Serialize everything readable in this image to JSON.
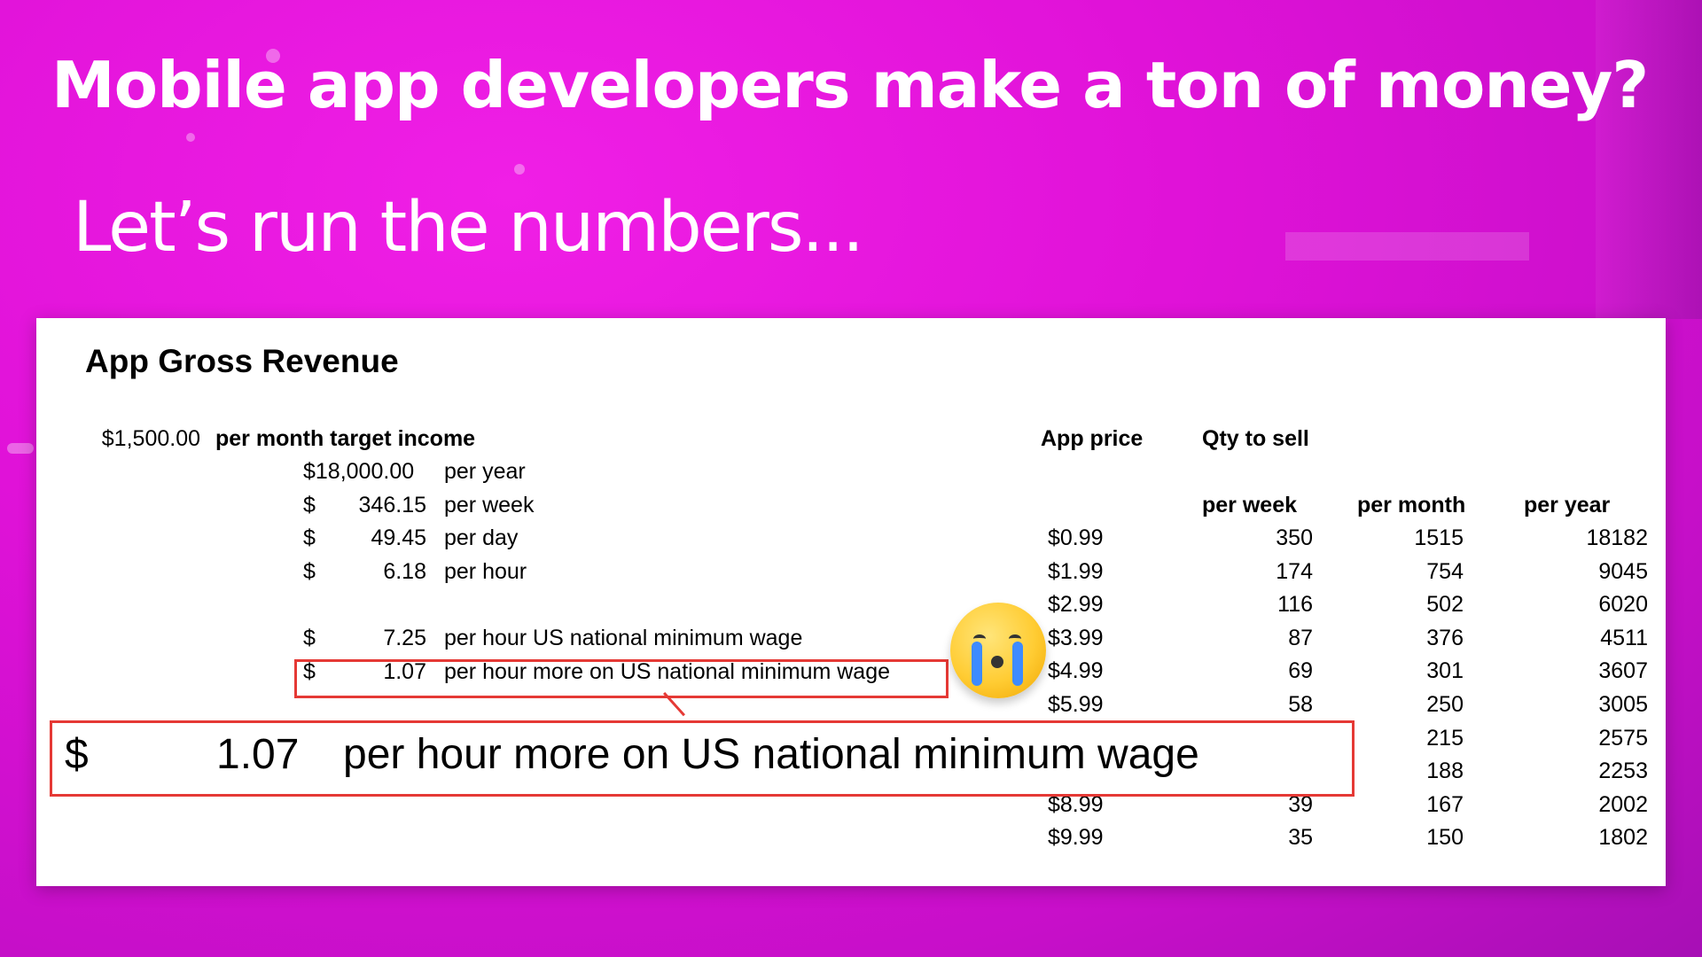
{
  "slide": {
    "title": "Mobile app developers make a ton of money?",
    "subtitle": "Let’s run the numbers..."
  },
  "sheet": {
    "title": "App Gross Revenue",
    "target": {
      "amount": "$1,500.00",
      "label": "per month target income"
    },
    "breakdown": [
      {
        "dollar": "$18,000.00",
        "amount": "",
        "label": "per year"
      },
      {
        "dollar": "$",
        "amount": "346.15",
        "label": "per week"
      },
      {
        "dollar": "$",
        "amount": "49.45",
        "label": "per day"
      },
      {
        "dollar": "$",
        "amount": "6.18",
        "label": "per hour"
      },
      {
        "dollar": "$",
        "amount": "7.25",
        "label": "per hour US national minimum wage"
      },
      {
        "dollar": "$",
        "amount": "1.07",
        "label": "per hour more on US national minimum wage"
      }
    ],
    "headers": {
      "app_price": "App price",
      "qty": "Qty to sell",
      "per_week": "per week",
      "per_month": "per month",
      "per_year": "per year"
    },
    "rows": [
      {
        "price": "$0.99",
        "week": "350",
        "month": "1515",
        "year": "18182"
      },
      {
        "price": "$1.99",
        "week": "174",
        "month": "754",
        "year": "9045"
      },
      {
        "price": "$2.99",
        "week": "116",
        "month": "502",
        "year": "6020"
      },
      {
        "price": "$3.99",
        "week": "87",
        "month": "376",
        "year": "4511"
      },
      {
        "price": "$4.99",
        "week": "69",
        "month": "301",
        "year": "3607"
      },
      {
        "price": "$5.99",
        "week": "58",
        "month": "250",
        "year": "3005"
      },
      {
        "price": "",
        "week": "",
        "month": "215",
        "year": "2575"
      },
      {
        "price": "",
        "week": "",
        "month": "188",
        "year": "2253"
      },
      {
        "price": "$8.99",
        "week": "39",
        "month": "167",
        "year": "2002"
      },
      {
        "price": "$9.99",
        "week": "35",
        "month": "150",
        "year": "1802"
      }
    ]
  },
  "callout": {
    "dollar": "$",
    "amount": "1.07",
    "label": "per hour more on US national minimum wage"
  },
  "emoji": {
    "icon": "crying-face-icon"
  },
  "colors": {
    "background": "#e012d8",
    "highlight": "#e53935"
  }
}
